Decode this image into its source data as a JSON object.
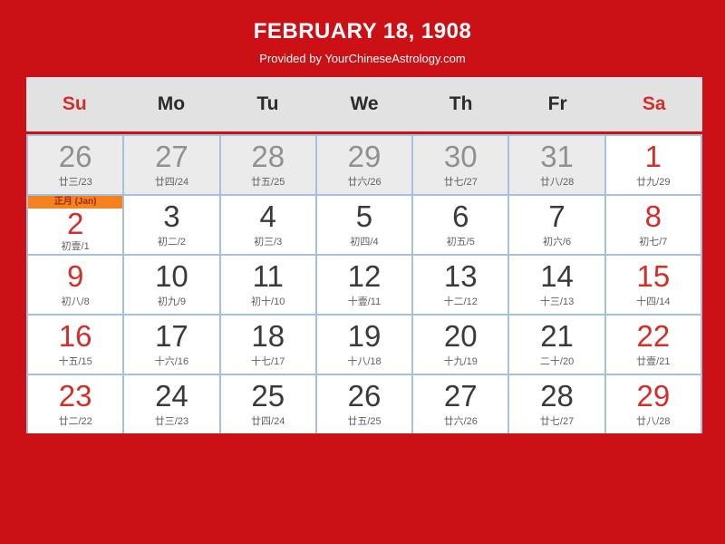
{
  "page": {
    "background_color": "#cb1016",
    "title": "FEBRUARY 18, 1908",
    "subtitle": "Provided by YourChineseAstrology.com"
  },
  "calendar": {
    "colors": {
      "header_bg": "#e2e2e2",
      "weekday_text": "#2b2b2b",
      "weekend_text": "#d22e2a",
      "normal_text": "#3a3a3a",
      "muted_bg": "#ebebeb",
      "muted_text": "#909090",
      "grid_line": "#a7c0dc",
      "badge_bg": "#f5821f",
      "badge_text": "#9c2c0f"
    },
    "weekdays": [
      {
        "label": "Su",
        "weekend": true
      },
      {
        "label": "Mo",
        "weekend": false
      },
      {
        "label": "Tu",
        "weekend": false
      },
      {
        "label": "We",
        "weekend": false
      },
      {
        "label": "Th",
        "weekend": false
      },
      {
        "label": "Fr",
        "weekend": false
      },
      {
        "label": "Sa",
        "weekend": true
      }
    ],
    "weeks": [
      [
        {
          "day": "26",
          "lunar": "廿三/23",
          "type": "muted"
        },
        {
          "day": "27",
          "lunar": "廿四/24",
          "type": "muted"
        },
        {
          "day": "28",
          "lunar": "廿五/25",
          "type": "muted"
        },
        {
          "day": "29",
          "lunar": "廿六/26",
          "type": "muted"
        },
        {
          "day": "30",
          "lunar": "廿七/27",
          "type": "muted"
        },
        {
          "day": "31",
          "lunar": "廿八/28",
          "type": "muted"
        },
        {
          "day": "1",
          "lunar": "廿九/29",
          "type": "weekend"
        }
      ],
      [
        {
          "day": "2",
          "lunar": "初壹/1",
          "type": "weekend",
          "badge": "正月 (Jan)"
        },
        {
          "day": "3",
          "lunar": "初二/2",
          "type": "normal"
        },
        {
          "day": "4",
          "lunar": "初三/3",
          "type": "normal"
        },
        {
          "day": "5",
          "lunar": "初四/4",
          "type": "normal"
        },
        {
          "day": "6",
          "lunar": "初五/5",
          "type": "normal"
        },
        {
          "day": "7",
          "lunar": "初六/6",
          "type": "normal"
        },
        {
          "day": "8",
          "lunar": "初七/7",
          "type": "weekend"
        }
      ],
      [
        {
          "day": "9",
          "lunar": "初八/8",
          "type": "weekend"
        },
        {
          "day": "10",
          "lunar": "初九/9",
          "type": "normal"
        },
        {
          "day": "11",
          "lunar": "初十/10",
          "type": "normal"
        },
        {
          "day": "12",
          "lunar": "十壹/11",
          "type": "normal"
        },
        {
          "day": "13",
          "lunar": "十二/12",
          "type": "normal"
        },
        {
          "day": "14",
          "lunar": "十三/13",
          "type": "normal"
        },
        {
          "day": "15",
          "lunar": "十四/14",
          "type": "weekend"
        }
      ],
      [
        {
          "day": "16",
          "lunar": "十五/15",
          "type": "weekend"
        },
        {
          "day": "17",
          "lunar": "十六/16",
          "type": "normal"
        },
        {
          "day": "18",
          "lunar": "十七/17",
          "type": "normal"
        },
        {
          "day": "19",
          "lunar": "十八/18",
          "type": "normal"
        },
        {
          "day": "20",
          "lunar": "十九/19",
          "type": "normal"
        },
        {
          "day": "21",
          "lunar": "二十/20",
          "type": "normal"
        },
        {
          "day": "22",
          "lunar": "廿壹/21",
          "type": "weekend"
        }
      ],
      [
        {
          "day": "23",
          "lunar": "廿二/22",
          "type": "weekend"
        },
        {
          "day": "24",
          "lunar": "廿三/23",
          "type": "normal"
        },
        {
          "day": "25",
          "lunar": "廿四/24",
          "type": "normal"
        },
        {
          "day": "26",
          "lunar": "廿五/25",
          "type": "normal"
        },
        {
          "day": "27",
          "lunar": "廿六/26",
          "type": "normal"
        },
        {
          "day": "28",
          "lunar": "廿七/27",
          "type": "normal"
        },
        {
          "day": "29",
          "lunar": "廿八/28",
          "type": "weekend"
        }
      ]
    ]
  }
}
